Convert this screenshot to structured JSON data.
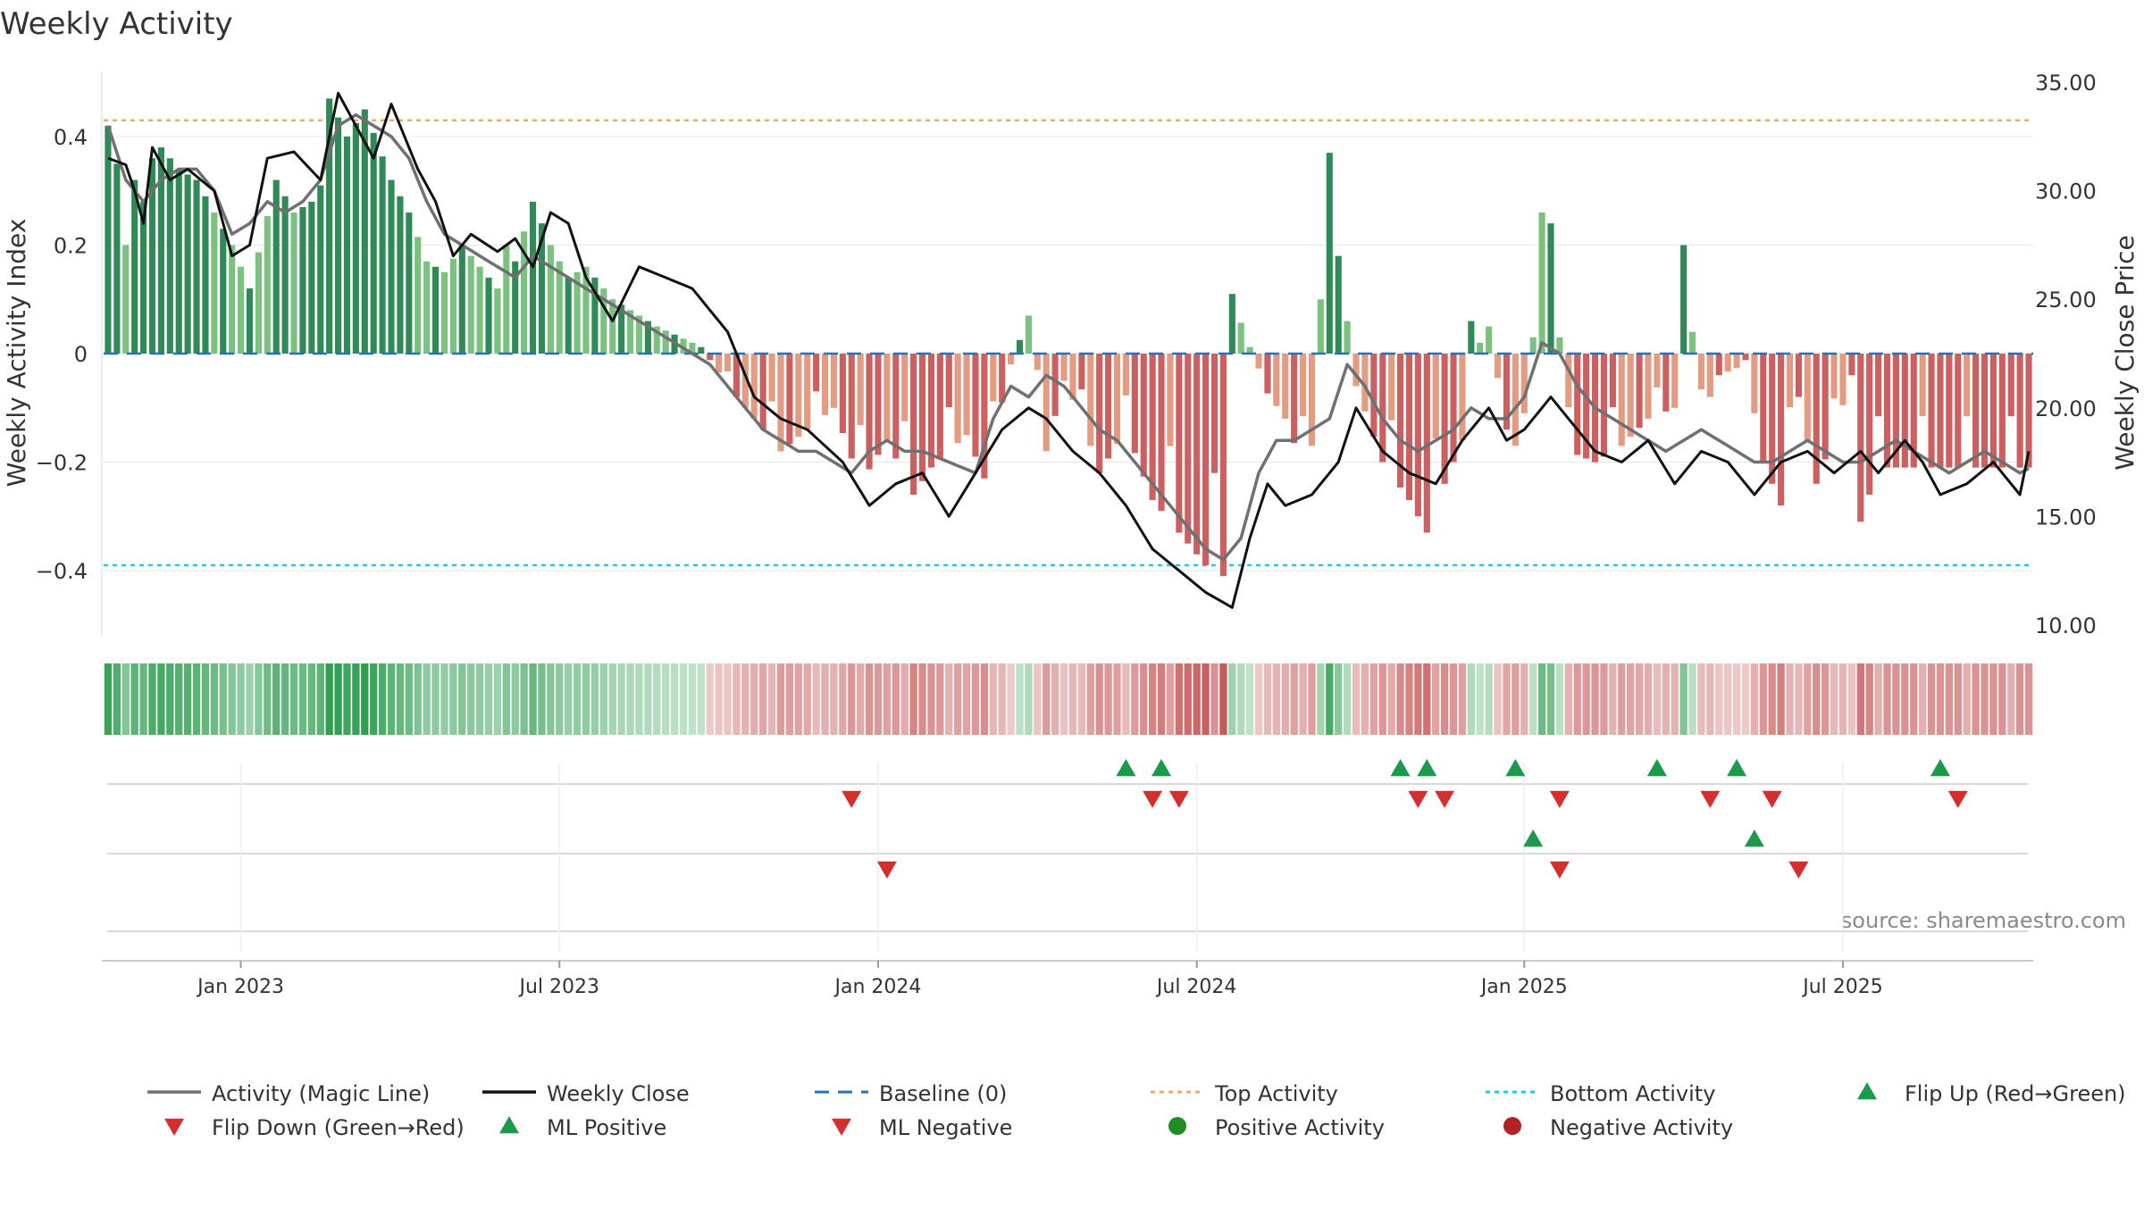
{
  "chart_data": {
    "type": "bar",
    "title": "Weekly Activity",
    "ylabel": "Weekly Activity Index",
    "y2label": "Weekly Close Price",
    "ylim": [
      -0.52,
      0.52
    ],
    "y2lim": [
      9.5,
      35.5
    ],
    "y_ticks": [
      0.4,
      0.2,
      0,
      -0.2,
      -0.4
    ],
    "y_tick_labels": [
      "0.4",
      "0.2",
      "0",
      "−0.2",
      "−0.4"
    ],
    "y2_ticks": [
      35,
      30,
      25,
      20,
      15,
      10
    ],
    "y2_tick_labels": [
      "35.00",
      "30.00",
      "25.00",
      "20.00",
      "15.00",
      "10.00"
    ],
    "x_tick_labels": [
      "Jan 2023",
      "Jul 2023",
      "Jan 2024",
      "Jul 2024",
      "Jan 2025",
      "Jul 2025"
    ],
    "x_tick_weeks": [
      15,
      51,
      87,
      123,
      160,
      196
    ],
    "weeks": 218,
    "top_activity": 0.43,
    "bottom_activity": -0.39,
    "source": "source: sharemaestro.com",
    "legend": [
      "Activity (Magic Line)",
      "Weekly Close",
      "Baseline (0)",
      "Top Activity",
      "Bottom Activity",
      "Flip Up (Red→Green)",
      "Flip Down (Green→Red)",
      "ML Positive",
      "ML Negative",
      "Positive Activity",
      "Negative Activity"
    ],
    "activity_anchors": [
      [
        0,
        0.42
      ],
      [
        1,
        0.35
      ],
      [
        2,
        0.2
      ],
      [
        3,
        0.32
      ],
      [
        4,
        0.28
      ],
      [
        5,
        0.36
      ],
      [
        6,
        0.38
      ],
      [
        8,
        0.34
      ],
      [
        10,
        0.32
      ],
      [
        12,
        0.26
      ],
      [
        14,
        0.2
      ],
      [
        16,
        0.12
      ],
      [
        19,
        0.32
      ],
      [
        21,
        0.26
      ],
      [
        23,
        0.28
      ],
      [
        24,
        0.31
      ],
      [
        25,
        0.47
      ],
      [
        27,
        0.4
      ],
      [
        29,
        0.45
      ],
      [
        32,
        0.32
      ],
      [
        34,
        0.26
      ],
      [
        36,
        0.17
      ],
      [
        38,
        0.15
      ],
      [
        40,
        0.2
      ],
      [
        42,
        0.16
      ],
      [
        44,
        0.12
      ],
      [
        45,
        0.2
      ],
      [
        46,
        0.17
      ],
      [
        48,
        0.28
      ],
      [
        50,
        0.2
      ],
      [
        52,
        0.14
      ],
      [
        54,
        0.16
      ],
      [
        57,
        0.1
      ],
      [
        59,
        0.08
      ],
      [
        62,
        0.05
      ],
      [
        66,
        0.02
      ],
      [
        68,
        -0.01
      ],
      [
        70,
        -0.06
      ],
      [
        73,
        -0.12
      ],
      [
        76,
        -0.18
      ],
      [
        79,
        -0.14
      ],
      [
        82,
        -0.1
      ],
      [
        85,
        -0.24
      ],
      [
        88,
        -0.16
      ],
      [
        91,
        -0.26
      ],
      [
        93,
        -0.21
      ],
      [
        95,
        -0.18
      ],
      [
        97,
        -0.15
      ],
      [
        99,
        -0.23
      ],
      [
        102,
        -0.02
      ],
      [
        104,
        0.07
      ],
      [
        106,
        -0.18
      ],
      [
        108,
        -0.05
      ],
      [
        110,
        -0.12
      ],
      [
        112,
        -0.22
      ],
      [
        115,
        -0.14
      ],
      [
        118,
        -0.27
      ],
      [
        121,
        -0.33
      ],
      [
        124,
        -0.39
      ],
      [
        126,
        -0.41
      ],
      [
        127,
        0.11
      ],
      [
        130,
        -0.05
      ],
      [
        133,
        -0.12
      ],
      [
        135,
        -0.21
      ],
      [
        136,
        -0.17
      ],
      [
        138,
        0.37
      ],
      [
        139,
        0.18
      ],
      [
        141,
        -0.06
      ],
      [
        144,
        -0.2
      ],
      [
        147,
        -0.27
      ],
      [
        149,
        -0.33
      ],
      [
        151,
        -0.24
      ],
      [
        153,
        -0.16
      ],
      [
        154,
        0.06
      ],
      [
        155,
        0.02
      ],
      [
        156,
        0.05
      ],
      [
        158,
        -0.14
      ],
      [
        160,
        -0.2
      ],
      [
        162,
        0.26
      ],
      [
        163,
        0.24
      ],
      [
        165,
        -0.18
      ],
      [
        168,
        -0.2
      ],
      [
        171,
        -0.17
      ],
      [
        174,
        -0.12
      ],
      [
        177,
        -0.1
      ],
      [
        178,
        0.2
      ],
      [
        180,
        -0.12
      ],
      [
        182,
        -0.04
      ],
      [
        185,
        -0.02
      ],
      [
        187,
        -0.2
      ],
      [
        189,
        -0.28
      ],
      [
        191,
        -0.08
      ],
      [
        193,
        -0.24
      ],
      [
        195,
        -0.15
      ],
      [
        197,
        -0.04
      ],
      [
        198,
        -0.31
      ],
      [
        200,
        -0.21
      ]
    ],
    "close_anchors": [
      [
        0,
        31.5
      ],
      [
        2,
        31.2
      ],
      [
        3,
        30.0
      ],
      [
        4,
        28.5
      ],
      [
        5,
        32.0
      ],
      [
        7,
        30.5
      ],
      [
        9,
        31.0
      ],
      [
        12,
        30.0
      ],
      [
        14,
        27.0
      ],
      [
        16,
        27.5
      ],
      [
        18,
        31.5
      ],
      [
        21,
        31.8
      ],
      [
        24,
        30.5
      ],
      [
        26,
        34.5
      ],
      [
        28,
        33.0
      ],
      [
        30,
        31.5
      ],
      [
        32,
        34.0
      ],
      [
        35,
        31.0
      ],
      [
        37,
        29.5
      ],
      [
        39,
        27.0
      ],
      [
        41,
        28.0
      ],
      [
        44,
        27.2
      ],
      [
        46,
        27.8
      ],
      [
        48,
        26.5
      ],
      [
        50,
        29.0
      ],
      [
        52,
        28.5
      ],
      [
        54,
        26.0
      ],
      [
        57,
        24.0
      ],
      [
        60,
        26.5
      ],
      [
        63,
        26.0
      ],
      [
        66,
        25.5
      ],
      [
        70,
        23.5
      ],
      [
        73,
        20.5
      ],
      [
        76,
        19.5
      ],
      [
        79,
        19.0
      ],
      [
        83,
        17.5
      ],
      [
        86,
        15.5
      ],
      [
        89,
        16.5
      ],
      [
        92,
        17.0
      ],
      [
        95,
        15.0
      ],
      [
        98,
        17.0
      ],
      [
        101,
        19.0
      ],
      [
        104,
        20.0
      ],
      [
        106,
        19.5
      ],
      [
        109,
        18.0
      ],
      [
        112,
        17.0
      ],
      [
        115,
        15.5
      ],
      [
        118,
        13.5
      ],
      [
        121,
        12.5
      ],
      [
        124,
        11.5
      ],
      [
        127,
        10.8
      ],
      [
        129,
        14.0
      ],
      [
        131,
        16.5
      ],
      [
        133,
        15.5
      ],
      [
        136,
        16.0
      ],
      [
        139,
        17.5
      ],
      [
        141,
        20.0
      ],
      [
        144,
        18.0
      ],
      [
        147,
        17.0
      ],
      [
        150,
        16.5
      ],
      [
        153,
        18.5
      ],
      [
        156,
        20.0
      ],
      [
        158,
        18.5
      ],
      [
        160,
        19.0
      ],
      [
        163,
        20.5
      ],
      [
        166,
        19.0
      ],
      [
        168,
        18.0
      ],
      [
        171,
        17.5
      ],
      [
        174,
        18.5
      ],
      [
        177,
        16.5
      ],
      [
        180,
        18.0
      ],
      [
        183,
        17.5
      ],
      [
        186,
        16.0
      ],
      [
        189,
        17.5
      ],
      [
        192,
        18.0
      ],
      [
        195,
        17.0
      ],
      [
        198,
        18.0
      ],
      [
        200,
        17.0
      ],
      [
        203,
        18.5
      ],
      [
        205,
        17.5
      ],
      [
        207,
        16.0
      ],
      [
        210,
        16.5
      ],
      [
        213,
        17.5
      ],
      [
        216,
        16.0
      ],
      [
        217,
        18.0
      ]
    ],
    "magic_anchors": [
      [
        0,
        33.0
      ],
      [
        2,
        30.5
      ],
      [
        4,
        29.5
      ],
      [
        6,
        30.5
      ],
      [
        8,
        31.0
      ],
      [
        10,
        31.0
      ],
      [
        12,
        30.0
      ],
      [
        14,
        28.0
      ],
      [
        16,
        28.5
      ],
      [
        18,
        29.5
      ],
      [
        20,
        29.0
      ],
      [
        22,
        29.5
      ],
      [
        24,
        30.5
      ],
      [
        26,
        33.0
      ],
      [
        28,
        33.5
      ],
      [
        30,
        33.0
      ],
      [
        32,
        32.5
      ],
      [
        34,
        31.5
      ],
      [
        36,
        29.5
      ],
      [
        38,
        28.0
      ],
      [
        40,
        27.5
      ],
      [
        42,
        27.0
      ],
      [
        44,
        26.5
      ],
      [
        46,
        26.0
      ],
      [
        48,
        27.0
      ],
      [
        50,
        26.5
      ],
      [
        52,
        26.0
      ],
      [
        54,
        25.5
      ],
      [
        56,
        25.0
      ],
      [
        58,
        24.5
      ],
      [
        60,
        24.0
      ],
      [
        62,
        23.5
      ],
      [
        64,
        23.0
      ],
      [
        66,
        22.5
      ],
      [
        68,
        22.0
      ],
      [
        70,
        21.0
      ],
      [
        72,
        20.0
      ],
      [
        74,
        19.0
      ],
      [
        76,
        18.5
      ],
      [
        78,
        18.0
      ],
      [
        80,
        18.0
      ],
      [
        82,
        17.5
      ],
      [
        84,
        17.0
      ],
      [
        86,
        18.0
      ],
      [
        88,
        18.5
      ],
      [
        90,
        18.0
      ],
      [
        92,
        18.0
      ],
      [
        95,
        17.5
      ],
      [
        98,
        17.0
      ],
      [
        100,
        19.5
      ],
      [
        102,
        21.0
      ],
      [
        104,
        20.5
      ],
      [
        106,
        21.5
      ],
      [
        108,
        21.0
      ],
      [
        110,
        20.0
      ],
      [
        112,
        19.0
      ],
      [
        114,
        18.5
      ],
      [
        116,
        17.5
      ],
      [
        118,
        16.5
      ],
      [
        120,
        15.5
      ],
      [
        122,
        14.5
      ],
      [
        124,
        13.5
      ],
      [
        126,
        13.0
      ],
      [
        128,
        14.0
      ],
      [
        130,
        17.0
      ],
      [
        132,
        18.5
      ],
      [
        134,
        18.5
      ],
      [
        136,
        19.0
      ],
      [
        138,
        19.5
      ],
      [
        140,
        22.0
      ],
      [
        142,
        21.0
      ],
      [
        144,
        19.5
      ],
      [
        146,
        18.5
      ],
      [
        148,
        18.0
      ],
      [
        150,
        18.5
      ],
      [
        152,
        19.0
      ],
      [
        154,
        20.0
      ],
      [
        156,
        19.5
      ],
      [
        158,
        19.5
      ],
      [
        160,
        20.5
      ],
      [
        162,
        23.0
      ],
      [
        164,
        22.5
      ],
      [
        166,
        21.0
      ],
      [
        168,
        20.0
      ],
      [
        170,
        19.5
      ],
      [
        172,
        19.0
      ],
      [
        174,
        18.5
      ],
      [
        176,
        18.0
      ],
      [
        178,
        18.5
      ],
      [
        180,
        19.0
      ],
      [
        182,
        18.5
      ],
      [
        184,
        18.0
      ],
      [
        186,
        17.5
      ],
      [
        188,
        17.5
      ],
      [
        190,
        18.0
      ],
      [
        192,
        18.5
      ],
      [
        194,
        18.0
      ],
      [
        196,
        17.5
      ],
      [
        198,
        17.5
      ],
      [
        200,
        18.0
      ],
      [
        202,
        18.5
      ],
      [
        204,
        18.0
      ],
      [
        206,
        17.5
      ],
      [
        208,
        17.0
      ],
      [
        210,
        17.5
      ],
      [
        212,
        18.0
      ],
      [
        214,
        17.5
      ],
      [
        216,
        17.0
      ],
      [
        217,
        17.2
      ]
    ],
    "row1_up": [
      115,
      119,
      146,
      149,
      159,
      175,
      184,
      207
    ],
    "row1_down": [
      84,
      118,
      121,
      148,
      151,
      164,
      181,
      188,
      209
    ],
    "row2_up": [
      161,
      186
    ],
    "row2_down": [
      88,
      164,
      191
    ],
    "colors": {
      "pos_dark": "#2f8a57",
      "pos_light": "#7bc17f",
      "neg_dark": "#cc5f5f",
      "neg_light": "#e39b82",
      "magic": "#707070",
      "close": "#111111",
      "baseline": "#2b6fb5",
      "top_line": "#f0a868",
      "bottom_line": "#22ccd6",
      "up_marker": "#1a9a4a",
      "down_marker": "#d32f2f",
      "pos_dot": "#228b22",
      "neg_dot": "#b22222",
      "grid": "#e6e6e6",
      "axis_text": "#333333"
    }
  }
}
